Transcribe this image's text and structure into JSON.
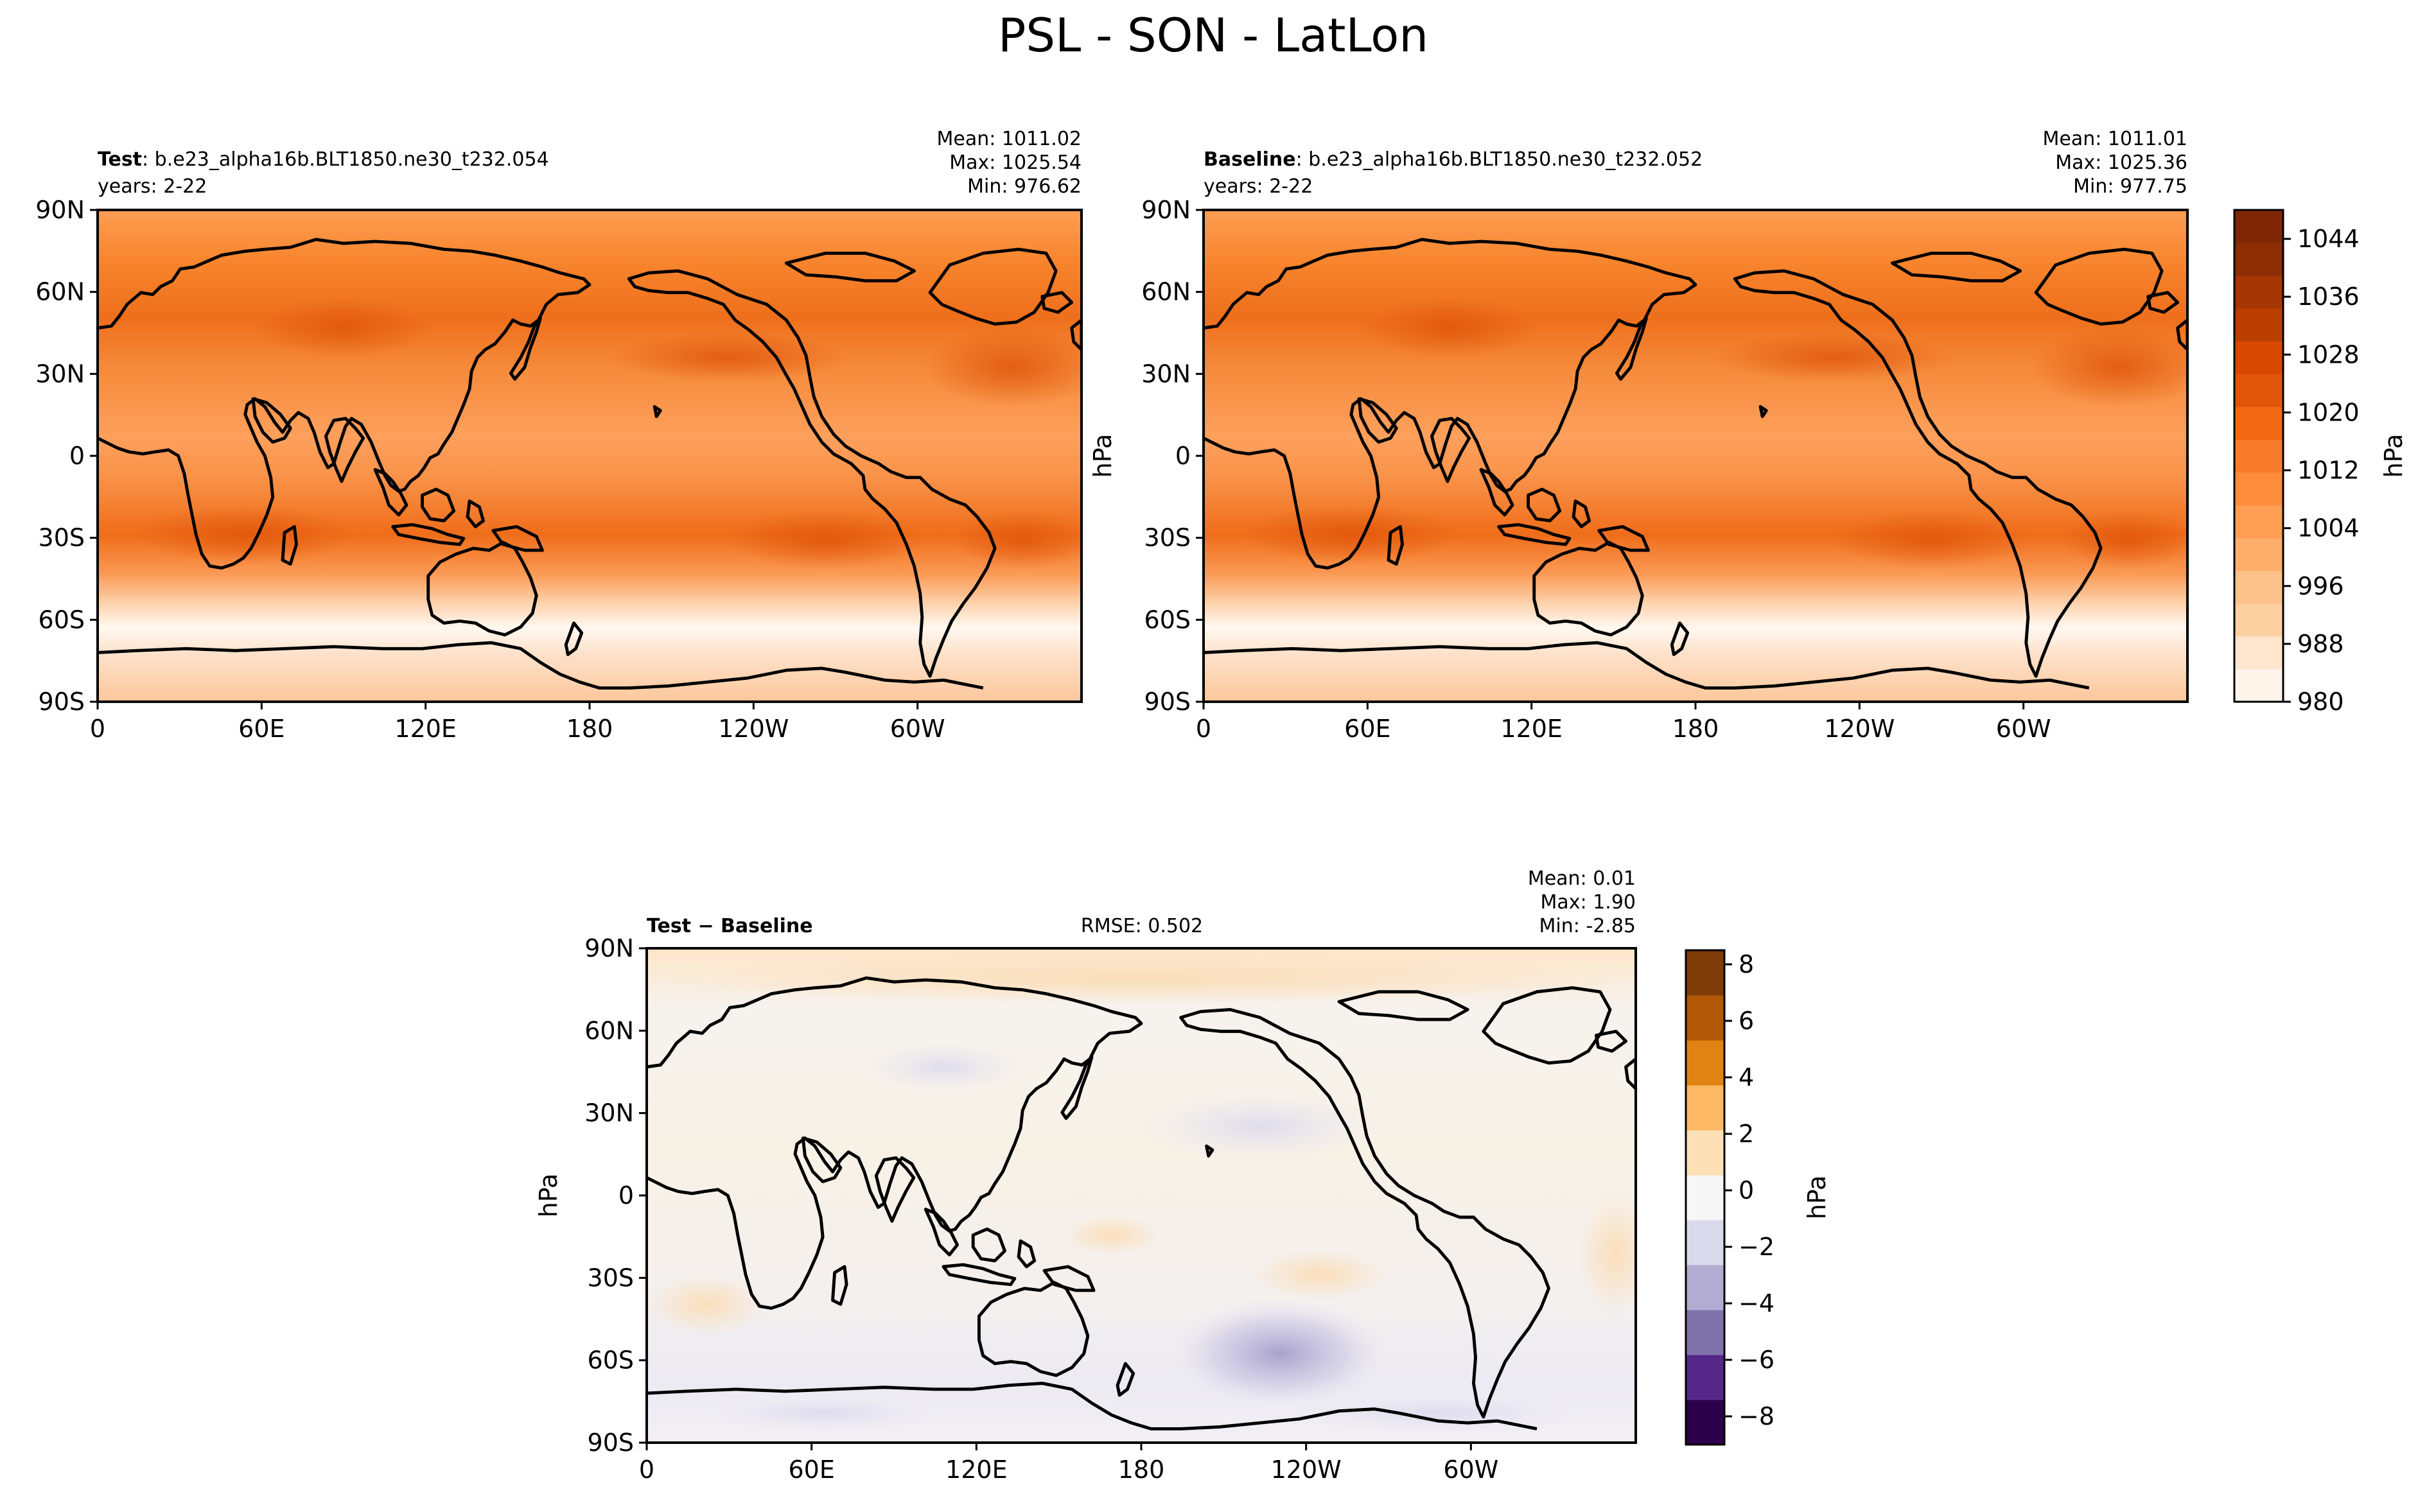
{
  "figure": {
    "title": "PSL - SON - LatLon"
  },
  "panels": {
    "test": {
      "name_bold": "Test",
      "name_rest": ": b.e23_alpha16b.BLT1850.ne30_t232.054",
      "years": "years: 2-22",
      "mean": "Mean: 1011.02",
      "max": "Max: 1025.54",
      "min": "Min: 976.62"
    },
    "baseline": {
      "name_bold": "Baseline",
      "name_rest": ": b.e23_alpha16b.BLT1850.ne30_t232.052",
      "years": "years: 2-22",
      "mean": "Mean: 1011.01",
      "max": "Max: 1025.36",
      "min": "Min: 977.75"
    },
    "diff": {
      "name_bold": "Test − Baseline",
      "rmse": "RMSE: 0.502",
      "mean": "Mean:  0.01",
      "max": "Max:  1.90",
      "min": "Min: -2.85"
    }
  },
  "axis_labels": {
    "units": "hPa"
  },
  "colors": {
    "orange_ramp": [
      "#fff5eb",
      "#fee6ce",
      "#fdd0a2",
      "#fdc28b",
      "#fdae6b",
      "#fd9e54",
      "#fd8d3c",
      "#f87b2a",
      "#f16913",
      "#e1570a",
      "#d94801",
      "#bc3f02",
      "#a63603",
      "#8c2d04",
      "#7f2704"
    ],
    "purple_orange_ramp": [
      "#2d004b",
      "#542788",
      "#8073ac",
      "#b2abd2",
      "#d8daeb",
      "#f7f7f7",
      "#fee0b6",
      "#fdb863",
      "#e08214",
      "#b35806",
      "#7f3b08"
    ]
  },
  "chart_data": [
    {
      "type": "heatmap",
      "panel": "test",
      "x_ticks": [
        "0",
        "60E",
        "120E",
        "180",
        "120W",
        "60W"
      ],
      "y_ticks": [
        "90N",
        "60N",
        "30N",
        "0",
        "30S",
        "60S",
        "90S"
      ],
      "xlim": [
        0,
        360
      ],
      "ylim": [
        -90,
        90
      ],
      "stats": {
        "mean": 1011.02,
        "max": 1025.54,
        "min": 976.62
      }
    },
    {
      "type": "heatmap",
      "panel": "baseline",
      "x_ticks": [
        "0",
        "60E",
        "120E",
        "180",
        "120W",
        "60W"
      ],
      "y_ticks": [
        "90N",
        "60N",
        "30N",
        "0",
        "30S",
        "60S",
        "90S"
      ],
      "xlim": [
        0,
        360
      ],
      "ylim": [
        -90,
        90
      ],
      "ylabel": "hPa",
      "stats": {
        "mean": 1011.01,
        "max": 1025.36,
        "min": 977.75
      }
    },
    {
      "type": "heatmap",
      "panel": "diff",
      "x_ticks": [
        "0",
        "60E",
        "120E",
        "180",
        "120W",
        "60W"
      ],
      "y_ticks": [
        "90N",
        "60N",
        "30N",
        "0",
        "30S",
        "60S",
        "90S"
      ],
      "xlim": [
        0,
        360
      ],
      "ylim": [
        -90,
        90
      ],
      "ylabel": "hPa",
      "rmse": 0.502,
      "stats": {
        "mean": 0.01,
        "max": 1.9,
        "min": -2.85
      }
    }
  ],
  "colorbars": {
    "top": {
      "range": [
        980,
        1048
      ],
      "ticks": [
        "980",
        "988",
        "996",
        "1004",
        "1012",
        "1020",
        "1028",
        "1036",
        "1044"
      ],
      "tick_values": [
        980,
        988,
        996,
        1004,
        1012,
        1020,
        1028,
        1036,
        1044
      ],
      "label": "hPa"
    },
    "bottom": {
      "range": [
        -9,
        8.5
      ],
      "ticks": [
        "−8",
        "−6",
        "−4",
        "−2",
        "0",
        "2",
        "4",
        "6",
        "8"
      ],
      "tick_values": [
        -8,
        -6,
        -4,
        -2,
        0,
        2,
        4,
        6,
        8
      ],
      "label": "hPa"
    }
  }
}
